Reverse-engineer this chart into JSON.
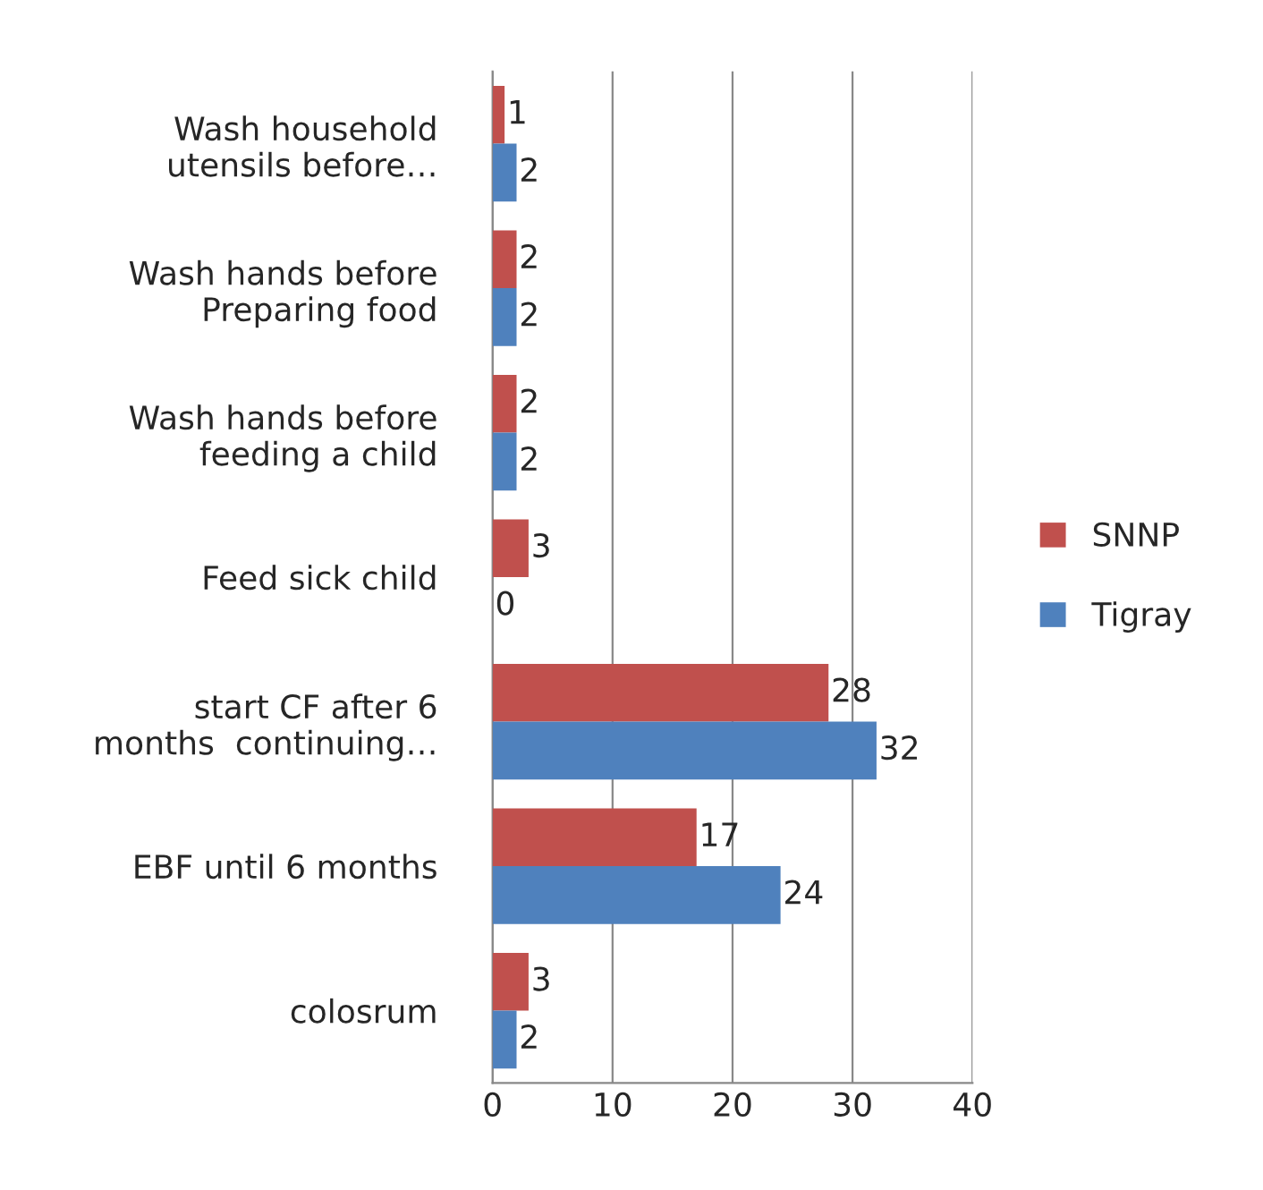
{
  "chart_data": {
    "type": "bar",
    "orientation": "horizontal",
    "categories": [
      "Wash household\nutensils before…",
      "Wash hands before\nPreparing food",
      "Wash hands before\nfeeding a child",
      "Feed sick child",
      "start CF after 6\nmonths  continuing…",
      "EBF until 6 months",
      "colosrum"
    ],
    "series": [
      {
        "name": "SNNP",
        "color": "#c0504d",
        "values": [
          1,
          2,
          2,
          3,
          28,
          17,
          3
        ]
      },
      {
        "name": "Tigray",
        "color": "#4f81bd",
        "values": [
          2,
          2,
          2,
          0,
          32,
          24,
          2
        ]
      }
    ],
    "xlim": [
      0,
      40
    ],
    "xticks": [
      0,
      10,
      20,
      30,
      40
    ],
    "grid": "x",
    "legend": "right",
    "data_labels": true
  }
}
